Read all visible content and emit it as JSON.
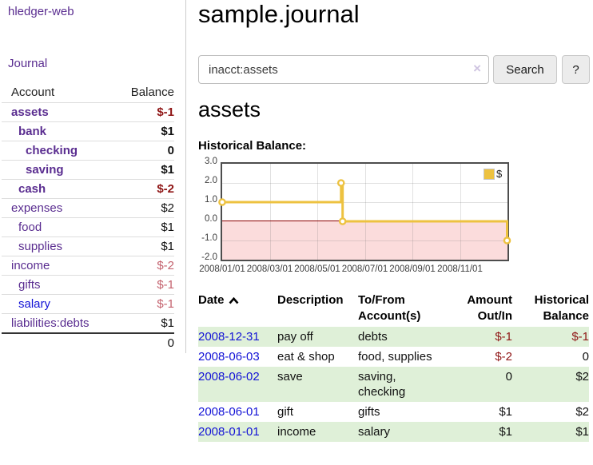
{
  "app": {
    "brand": "hledger-web"
  },
  "sidebar": {
    "nav": {
      "journal_label": "Journal"
    },
    "accounts_table": {
      "headers": {
        "account": "Account",
        "balance": "Balance"
      },
      "rows": [
        {
          "name": "assets",
          "balance": "$-1",
          "depth": 0,
          "bold": true,
          "balance_style": "neg-strong"
        },
        {
          "name": "bank",
          "balance": "$1",
          "depth": 1,
          "bold": true,
          "balance_style": "pos-strong"
        },
        {
          "name": "checking",
          "balance": "0",
          "depth": 2,
          "bold": true,
          "balance_style": "pos-strong"
        },
        {
          "name": "saving",
          "balance": "$1",
          "depth": 2,
          "bold": true,
          "balance_style": "pos-strong"
        },
        {
          "name": "cash",
          "balance": "$-2",
          "depth": 1,
          "bold": true,
          "balance_style": "neg-strong"
        },
        {
          "name": "expenses",
          "balance": "$2",
          "depth": 0,
          "bold": false,
          "balance_style": "pos"
        },
        {
          "name": "food",
          "balance": "$1",
          "depth": 1,
          "bold": false,
          "balance_style": "pos"
        },
        {
          "name": "supplies",
          "balance": "$1",
          "depth": 1,
          "bold": false,
          "balance_style": "pos"
        },
        {
          "name": "income",
          "balance": "$-2",
          "depth": 0,
          "bold": false,
          "balance_style": "neg"
        },
        {
          "name": "gifts",
          "balance": "$-1",
          "depth": 1,
          "bold": false,
          "balance_style": "neg"
        },
        {
          "name": "salary",
          "balance": "$-1",
          "depth": 1,
          "bold": false,
          "balance_style": "neg",
          "link_style": "blue"
        },
        {
          "name": "liabilities:debts",
          "balance": "$1",
          "depth": 0,
          "bold": false,
          "balance_style": "pos"
        }
      ],
      "total": "0"
    }
  },
  "main": {
    "page_title": "sample.journal",
    "search": {
      "value": "inacct:assets",
      "clear_icon": "×",
      "button_label": "Search",
      "help_label": "?"
    },
    "account_heading": "assets",
    "register_table": {
      "headers": [
        "Date",
        "Description",
        "To/From Account(s)",
        "Amount Out/In",
        "Historical Balance"
      ],
      "rows": [
        {
          "date": "2008-12-31",
          "description": "pay off",
          "accounts": "debts",
          "amount": "$-1",
          "amount_neg": true,
          "balance": "$-1",
          "balance_neg": true
        },
        {
          "date": "2008-06-03",
          "description": "eat & shop",
          "accounts": "food, supplies",
          "amount": "$-2",
          "amount_neg": true,
          "balance": "0",
          "balance_neg": false
        },
        {
          "date": "2008-06-02",
          "description": "save",
          "accounts": "saving, checking",
          "amount": "0",
          "amount_neg": false,
          "balance": "$2",
          "balance_neg": false
        },
        {
          "date": "2008-06-01",
          "description": "gift",
          "accounts": "gifts",
          "amount": "$1",
          "amount_neg": false,
          "balance": "$2",
          "balance_neg": false
        },
        {
          "date": "2008-01-01",
          "description": "income",
          "accounts": "salary",
          "amount": "$1",
          "amount_neg": false,
          "balance": "$1",
          "balance_neg": false
        }
      ]
    }
  },
  "chart_data": {
    "type": "line",
    "step": "horizontal-then-vertical",
    "title": "Historical Balance:",
    "series": [
      {
        "name": "$",
        "color": "#edc240",
        "points": [
          {
            "date": "2008-01-01",
            "value": 1
          },
          {
            "date": "2008-06-01",
            "value": 2
          },
          {
            "date": "2008-06-03",
            "value": 0
          },
          {
            "date": "2008-12-31",
            "value": -1
          }
        ]
      }
    ],
    "x_tick_labels": [
      "2008/01/01",
      "2008/03/01",
      "2008/05/01",
      "2008/07/01",
      "2008/09/01",
      "2008/11/01"
    ],
    "x_range_months": 12,
    "y_tick_labels": [
      "3.0",
      "2.0",
      "1.0",
      "0.0",
      "-1.0",
      "-2.0"
    ],
    "ylim": [
      -2,
      3
    ],
    "grid": true,
    "legend_position": "top-right",
    "zero_line_color": "#8b0000",
    "negative_region_color": "#fbdcdc"
  },
  "colors": {
    "link_purple": "#5a2d90",
    "link_blue": "#1212d6",
    "negative_strong": "#8f1515",
    "negative_soft": "#c4626e",
    "row_stripe_green": "#dff0d8",
    "series_yellow": "#edc240"
  }
}
